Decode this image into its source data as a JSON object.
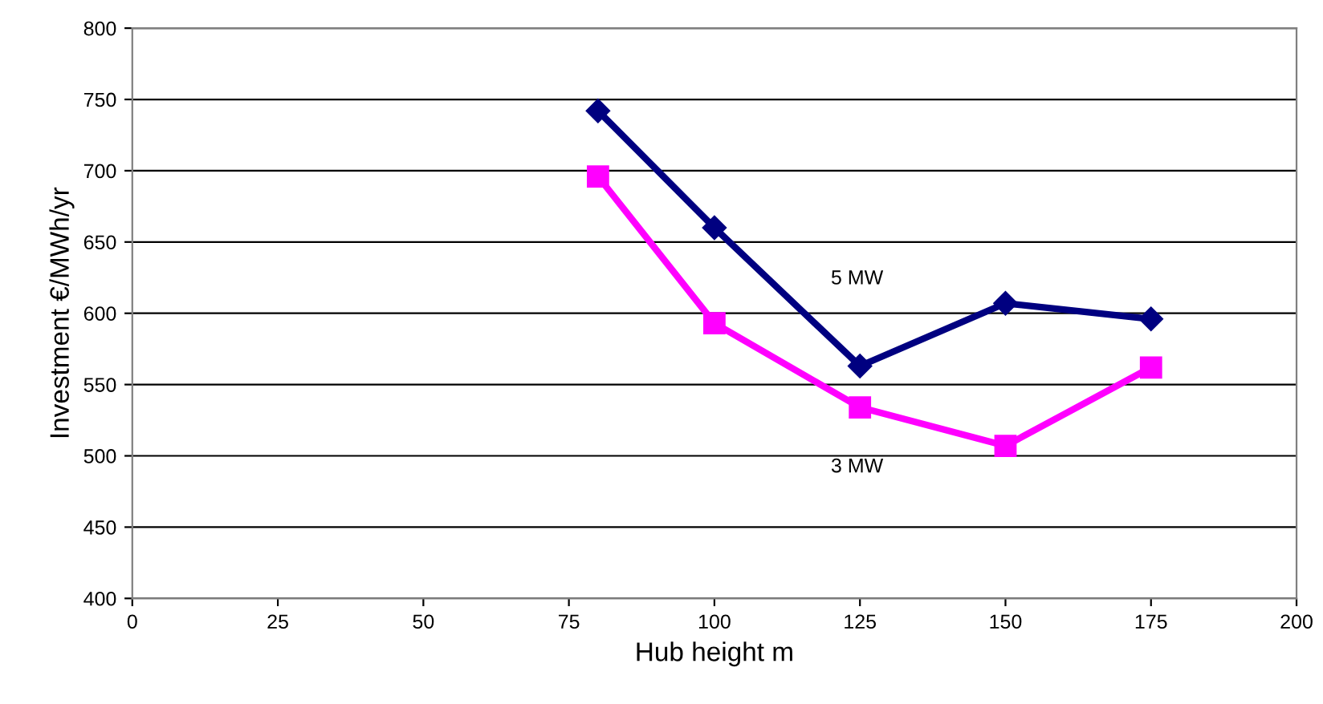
{
  "chart_data": {
    "type": "line",
    "xlabel": "Hub height m",
    "ylabel": "Investment €/MWh/yr",
    "series": [
      {
        "color": "#000080",
        "marker": "diamond",
        "x": [
          80,
          100,
          125,
          150,
          175
        ],
        "values": [
          742,
          660,
          563,
          607,
          596
        ]
      },
      {
        "color": "#ff00ff",
        "marker": "square",
        "x": [
          80,
          100,
          125,
          150,
          175
        ],
        "values": [
          696,
          593,
          534,
          507,
          562
        ]
      }
    ],
    "annotations": [
      "5 MW",
      "3 MW"
    ],
    "xlim": [
      0,
      200
    ],
    "xticks": [
      0,
      25,
      50,
      75,
      100,
      125,
      150,
      175,
      200
    ],
    "ylim": [
      400,
      800
    ],
    "yticks": [
      400,
      450,
      500,
      550,
      600,
      650,
      700,
      750,
      800
    ],
    "grid": "y",
    "legend": false
  }
}
